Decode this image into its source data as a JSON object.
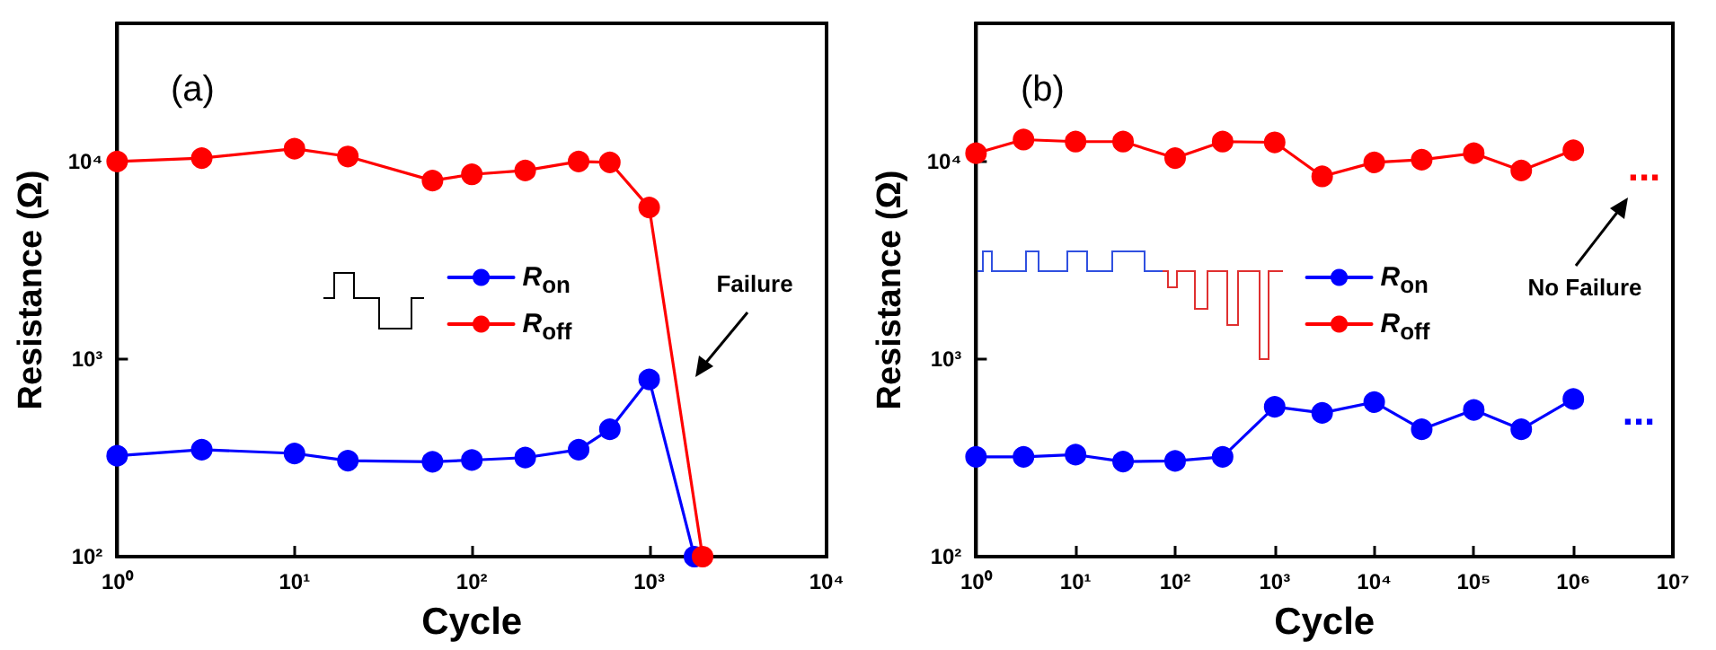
{
  "chart_data": [
    {
      "type": "line",
      "title": "(a)",
      "xlabel": "Cycle",
      "ylabel": "Resistance (Ω)",
      "log": "xy",
      "xlim": [
        1,
        10000
      ],
      "ylim": [
        100,
        50000
      ],
      "xticks": [
        {
          "value": 1,
          "label": "10⁰"
        },
        {
          "value": 10,
          "label": "10¹"
        },
        {
          "value": 100,
          "label": "10²"
        },
        {
          "value": 1000,
          "label": "10³"
        },
        {
          "value": 10000,
          "label": "10⁴"
        }
      ],
      "yticks": [
        {
          "value": 100,
          "label": "10²"
        },
        {
          "value": 1000,
          "label": "10³"
        },
        {
          "value": 10000,
          "label": "10⁴"
        }
      ],
      "x": [
        1,
        3,
        10,
        20,
        60,
        100,
        200,
        400,
        600,
        1000,
        2000
      ],
      "series": [
        {
          "name": "R$_{on}$",
          "color": "#0000ff",
          "x": [
            1,
            3,
            10,
            20,
            60,
            100,
            200,
            400,
            600,
            1000,
            1800
          ],
          "values": [
            324,
            348,
            333,
            306,
            302,
            308,
            317,
            348,
            441,
            789,
            100
          ]
        },
        {
          "name": "R$_{off}$",
          "color": "#ff0000",
          "values": [
            10000,
            10400,
            11600,
            10600,
            8000,
            8600,
            9000,
            10000,
            9900,
            5850,
            100
          ]
        }
      ],
      "marker": "circle",
      "legend": "center",
      "annotations": [
        "Failure"
      ]
    },
    {
      "type": "line",
      "title": "(b)",
      "xlabel": "Cycle",
      "ylabel": "Resistance (Ω)",
      "log": "xy",
      "xlim": [
        1,
        10000000
      ],
      "ylim": [
        100,
        50000
      ],
      "xticks": [
        {
          "value": 1,
          "label": "10⁰"
        },
        {
          "value": 10,
          "label": "10¹"
        },
        {
          "value": 100,
          "label": "10²"
        },
        {
          "value": 1000,
          "label": "10³"
        },
        {
          "value": 10000,
          "label": "10⁴"
        },
        {
          "value": 100000,
          "label": "10⁵"
        },
        {
          "value": 1000000,
          "label": "10⁶"
        },
        {
          "value": 10000000,
          "label": "10⁷"
        }
      ],
      "yticks": [
        {
          "value": 100,
          "label": "10²"
        },
        {
          "value": 1000,
          "label": "10³"
        },
        {
          "value": 10000,
          "label": "10⁴"
        }
      ],
      "x": [
        1,
        3,
        10,
        30,
        100,
        300,
        1000,
        3000,
        10000,
        30000,
        100000,
        300000,
        1000000
      ],
      "series": [
        {
          "name": "R$_{on}$",
          "color": "#0000ff",
          "values": [
            320,
            320,
            328,
            303,
            305,
            320,
            573,
            534,
            606,
            441,
            553,
            441,
            628
          ]
        },
        {
          "name": "R$_{off}$",
          "color": "#ff0000",
          "values": [
            11000,
            12900,
            12600,
            12600,
            10400,
            12600,
            12500,
            8400,
            9900,
            10200,
            11000,
            9000,
            11400
          ]
        }
      ],
      "marker": "circle",
      "legend": "center",
      "annotations": [
        "No Failure",
        "...",
        "..."
      ]
    }
  ]
}
